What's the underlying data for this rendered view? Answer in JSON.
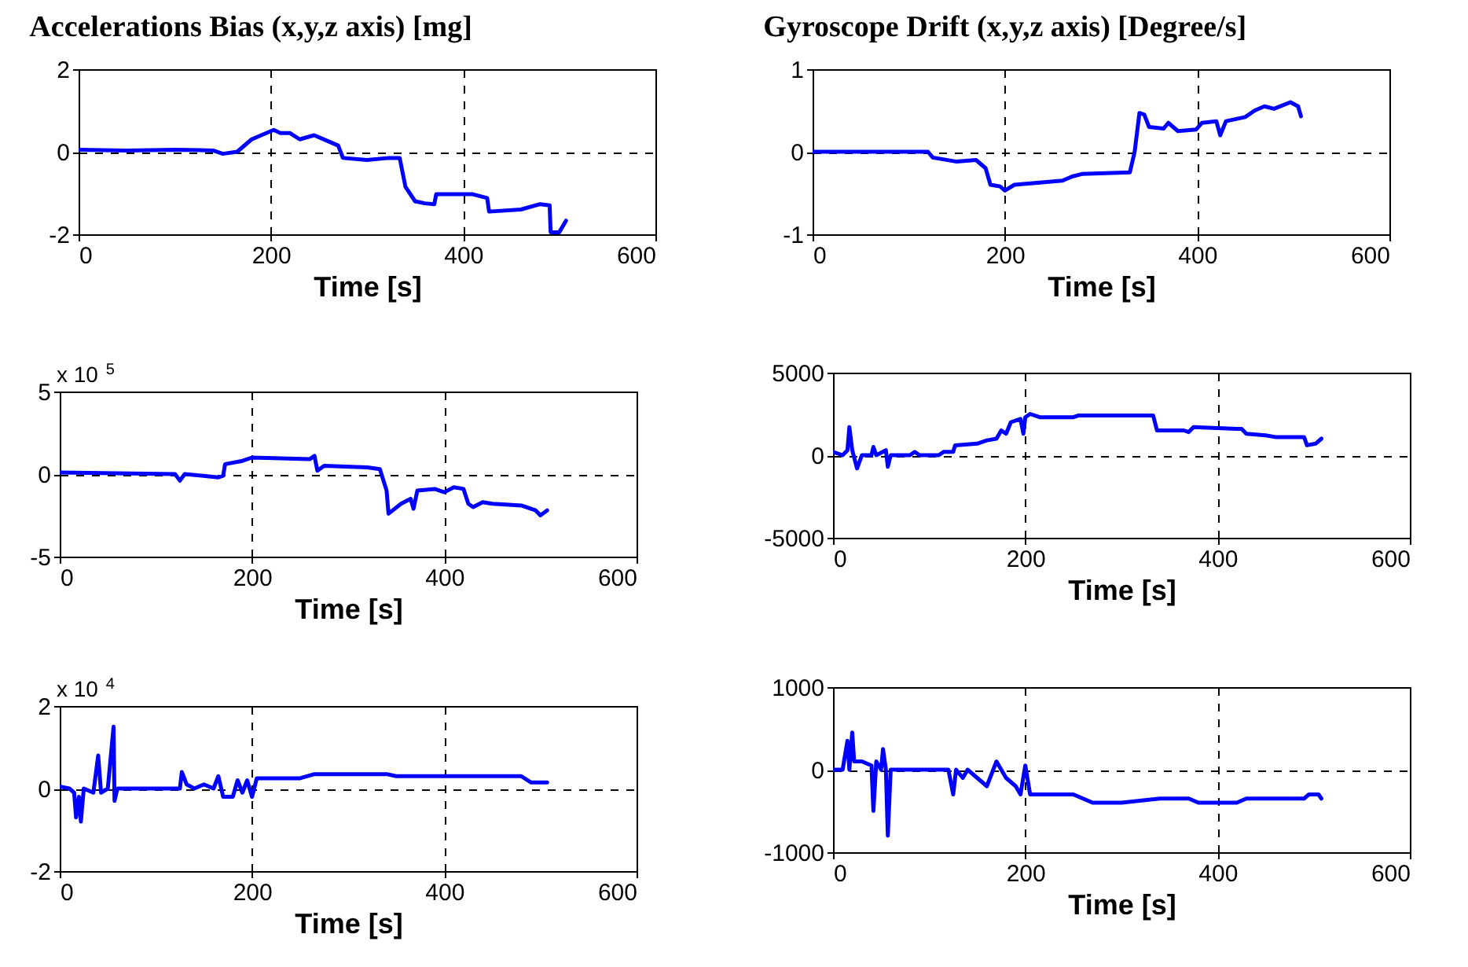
{
  "chart_data": [
    {
      "type": "line",
      "title": "Accelerations Bias (x,y,z axis) [mg]",
      "xlabel": "Time [s]",
      "xlim": [
        0,
        600
      ],
      "xticks": [
        0,
        200,
        400,
        600
      ],
      "ylim": [
        -2,
        2
      ],
      "yticks": [
        -2,
        0,
        2
      ],
      "grid": true,
      "x": [
        0,
        50,
        100,
        140,
        150,
        165,
        170,
        180,
        190,
        203,
        210,
        220,
        230,
        245,
        260,
        270,
        275,
        300,
        323,
        334,
        340,
        350,
        360,
        370,
        372,
        410,
        425,
        427,
        460,
        480,
        490,
        491,
        500,
        507
      ],
      "series": [
        {
          "color": "#0000ff",
          "values": [
            0.05,
            0.03,
            0.05,
            0.03,
            -0.05,
            0,
            0.1,
            0.3,
            0.4,
            0.53,
            0.45,
            0.45,
            0.3,
            0.4,
            0.25,
            0.15,
            -0.15,
            -0.2,
            -0.15,
            -0.15,
            -0.85,
            -1.2,
            -1.25,
            -1.27,
            -1.03,
            -1.03,
            -1.12,
            -1.45,
            -1.4,
            -1.27,
            -1.3,
            -1.95,
            -1.95,
            -1.67
          ]
        }
      ]
    },
    {
      "type": "line",
      "title": "Gyroscope Drift (x,y,z axis) [Degree/s]",
      "xlabel": "Time [s]",
      "xlim": [
        0,
        600
      ],
      "xticks": [
        0,
        200,
        400,
        600
      ],
      "ylim": [
        -1,
        1
      ],
      "yticks": [
        -1,
        0,
        1
      ],
      "grid": true,
      "x": [
        0,
        120,
        125,
        150,
        170,
        180,
        185,
        195,
        200,
        210,
        260,
        270,
        280,
        330,
        335,
        340,
        345,
        350,
        365,
        370,
        380,
        399,
        405,
        420,
        424,
        430,
        450,
        460,
        470,
        480,
        497,
        505,
        508
      ],
      "series": [
        {
          "color": "#0000ff",
          "values": [
            0,
            0,
            -0.07,
            -0.12,
            -0.1,
            -0.2,
            -0.4,
            -0.42,
            -0.47,
            -0.4,
            -0.35,
            -0.3,
            -0.27,
            -0.25,
            0,
            0.47,
            0.45,
            0.3,
            0.28,
            0.35,
            0.25,
            0.27,
            0.35,
            0.37,
            0.2,
            0.37,
            0.42,
            0.5,
            0.55,
            0.52,
            0.6,
            0.55,
            0.43
          ]
        }
      ]
    },
    {
      "type": "line",
      "xlabel": "Time [s]",
      "xlim": [
        0,
        600
      ],
      "xticks": [
        0,
        200,
        400,
        600
      ],
      "ylim": [
        -5,
        5
      ],
      "yticks": [
        -5,
        0,
        5
      ],
      "grid": true,
      "annotations": [
        "x 10$^{5}$"
      ],
      "x": [
        0,
        120,
        125,
        130,
        165,
        170,
        172,
        190,
        200,
        260,
        265,
        268,
        275,
        320,
        333,
        340,
        342,
        355,
        365,
        368,
        372,
        390,
        400,
        410,
        420,
        425,
        430,
        440,
        450,
        480,
        495,
        500,
        507
      ],
      "series": [
        {
          "color": "#0000ff",
          "values": [
            0.1,
            0,
            -0.4,
            0,
            -0.2,
            -0.1,
            0.6,
            0.8,
            1,
            0.9,
            1.1,
            0.2,
            0.5,
            0.4,
            0.3,
            -1,
            -2.4,
            -1.8,
            -1.5,
            -2.1,
            -1,
            -0.9,
            -1.1,
            -0.8,
            -0.9,
            -1.8,
            -2,
            -1.7,
            -1.8,
            -1.9,
            -2.2,
            -2.5,
            -2.2
          ]
        }
      ]
    },
    {
      "type": "line",
      "xlabel": "Time [s]",
      "xlim": [
        0,
        600
      ],
      "xticks": [
        0,
        200,
        400,
        600
      ],
      "ylim": [
        -5000,
        5000
      ],
      "yticks": [
        -5000,
        0,
        5000
      ],
      "grid": true,
      "x": [
        0,
        10,
        15,
        17,
        20,
        25,
        30,
        40,
        42,
        45,
        55,
        57,
        60,
        80,
        85,
        90,
        110,
        115,
        125,
        127,
        150,
        160,
        170,
        175,
        180,
        185,
        195,
        198,
        200,
        205,
        215,
        250,
        255,
        333,
        337,
        365,
        370,
        375,
        420,
        425,
        430,
        450,
        460,
        490,
        493,
        502,
        508
      ],
      "series": [
        {
          "color": "#0000ff",
          "values": [
            200,
            0,
            300,
            1700,
            300,
            -800,
            0,
            0,
            500,
            0,
            300,
            -700,
            0,
            0,
            200,
            0,
            0,
            200,
            200,
            600,
            700,
            900,
            1000,
            1500,
            1300,
            2000,
            2200,
            1300,
            2300,
            2500,
            2300,
            2300,
            2400,
            2400,
            1500,
            1500,
            1400,
            1700,
            1600,
            1600,
            1300,
            1200,
            1100,
            1100,
            600,
            700,
            1000
          ]
        }
      ]
    },
    {
      "type": "line",
      "xlabel": "Time [s]",
      "xlim": [
        0,
        600
      ],
      "xticks": [
        0,
        200,
        400,
        600
      ],
      "ylim": [
        -2,
        2
      ],
      "yticks": [
        -2,
        0,
        2
      ],
      "grid": true,
      "annotations": [
        "x 10$^{4}$"
      ],
      "x": [
        0,
        10,
        15,
        17,
        20,
        22,
        25,
        35,
        40,
        43,
        50,
        56,
        57,
        60,
        125,
        127,
        132,
        140,
        150,
        160,
        165,
        170,
        180,
        185,
        190,
        195,
        200,
        205,
        250,
        265,
        340,
        350,
        480,
        490,
        507
      ],
      "series": [
        {
          "color": "#0000ff",
          "values": [
            0.05,
            0,
            -0.1,
            -0.7,
            -0.2,
            -0.8,
            0,
            -0.1,
            0.8,
            -0.1,
            0,
            1.5,
            -0.3,
            0,
            0,
            0.4,
            0.1,
            0,
            0.1,
            0,
            0.3,
            -0.2,
            -0.2,
            0.2,
            -0.1,
            0.2,
            -0.2,
            0.25,
            0.25,
            0.35,
            0.35,
            0.3,
            0.3,
            0.15,
            0.15
          ]
        }
      ]
    },
    {
      "type": "line",
      "xlabel": "Time [s]",
      "xlim": [
        0,
        600
      ],
      "xticks": [
        0,
        200,
        400,
        600
      ],
      "ylim": [
        -1000,
        1000
      ],
      "yticks": [
        -1000,
        0,
        1000
      ],
      "grid": true,
      "x": [
        0,
        10,
        15,
        17,
        20,
        22,
        30,
        40,
        42,
        45,
        50,
        52,
        55,
        57,
        60,
        120,
        125,
        128,
        135,
        140,
        160,
        170,
        180,
        190,
        195,
        200,
        205,
        250,
        270,
        300,
        340,
        370,
        380,
        420,
        430,
        490,
        495,
        505,
        508
      ],
      "series": [
        {
          "color": "#0000ff",
          "values": [
            0,
            0,
            350,
            0,
            450,
            100,
            100,
            50,
            -500,
            100,
            0,
            250,
            0,
            -800,
            0,
            0,
            -300,
            0,
            -100,
            0,
            -200,
            100,
            -100,
            -200,
            -300,
            50,
            -300,
            -300,
            -400,
            -400,
            -350,
            -350,
            -400,
            -400,
            -350,
            -350,
            -300,
            -300,
            -350
          ]
        }
      ]
    }
  ]
}
